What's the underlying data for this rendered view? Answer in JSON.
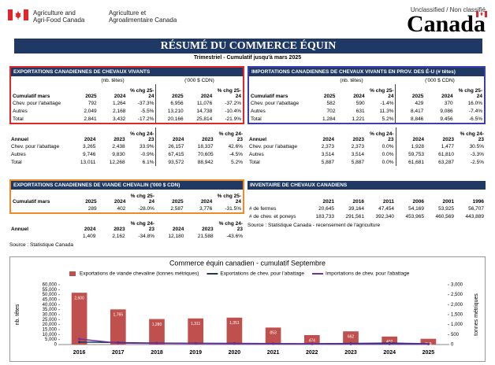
{
  "header": {
    "org_en": [
      "Agriculture and",
      "Agri-Food Canada"
    ],
    "org_fr": [
      "Agriculture et",
      "Agroalimentaire Canada"
    ],
    "classification": "Unclassified / Non classifié",
    "wordmark": "Canada"
  },
  "title": "RÉSUMÉ DU COMMERCE ÉQUIN",
  "subtitle": "Trimestriel - Cumulatif jusqu'à mars 2025",
  "panels": [
    {
      "title": "EXPORTATIONS CANADIENNES DE CHEVAUX VIVANTS",
      "outline": "#e0262b",
      "units": [
        "(nb. têtes)",
        "('000 $ CDN)"
      ],
      "sections": [
        {
          "label": "Cumulatif mars",
          "columns": [
            "2025",
            "2024",
            "% chg 25-24",
            "2025",
            "2024",
            "% chg 25-24"
          ],
          "rows": [
            {
              "label": "Chev. pour l'abattage",
              "cells": [
                "792",
                "1,264",
                "-37.3%",
                "6,956",
                "11,076",
                "-37.2%"
              ]
            },
            {
              "label": "Autres",
              "cells": [
                "2,049",
                "2,168",
                "-5.5%",
                "13,210",
                "14,738",
                "-10.4%"
              ]
            },
            {
              "label": "Total",
              "cells": [
                "2,841",
                "3,432",
                "-17.2%",
                "20,166",
                "25,814",
                "-21.9%"
              ]
            }
          ]
        },
        {
          "label": "Annuel",
          "columns": [
            "2024",
            "2023",
            "% chg 24-23",
            "2024",
            "2023",
            "% chg 24-23"
          ],
          "rows": [
            {
              "label": "Chev. pour l'abattage",
              "cells": [
                "3,265",
                "2,438",
                "33.9%",
                "26,157",
                "18,337",
                "42.6%"
              ]
            },
            {
              "label": "Autres",
              "cells": [
                "9,746",
                "9,830",
                "-0.9%",
                "67,415",
                "70,605",
                "-4.5%"
              ]
            },
            {
              "label": "Total",
              "cells": [
                "13,011",
                "12,268",
                "6.1%",
                "93,572",
                "88,942",
                "5.2%"
              ]
            }
          ]
        }
      ]
    },
    {
      "title": "IMPORTATIONS CANADIENNES DE CHEVAUX VIVANTS EN PROV. DES É-U (# têtes)",
      "outline": "#3b3fb0",
      "units": [
        "(nb. têtes)",
        "('000 $ CDN)"
      ],
      "sections": [
        {
          "label": "Cumulatif mars",
          "columns": [
            "2025",
            "2024",
            "% chg 25-24",
            "2025",
            "2024",
            "% chg 25-24"
          ],
          "rows": [
            {
              "label": "Chev. pour l'abattage",
              "cells": [
                "582",
                "590",
                "-1.4%",
                "429",
                "370",
                "16.0%"
              ]
            },
            {
              "label": "Autres",
              "cells": [
                "702",
                "631",
                "11.3%",
                "8,417",
                "9,086",
                "-7.4%"
              ]
            },
            {
              "label": "Total",
              "cells": [
                "1,284",
                "1,221",
                "5.2%",
                "8,846",
                "9,456",
                "-6.5%"
              ]
            }
          ]
        },
        {
          "label": "Annuel",
          "columns": [
            "2024",
            "2023",
            "% chg 24-23",
            "2024",
            "2023",
            "% chg 24-23"
          ],
          "rows": [
            {
              "label": "Chev. pour l'abattage",
              "cells": [
                "2,373",
                "2,373",
                "0.0%",
                "1,928",
                "1,477",
                "30.5%"
              ]
            },
            {
              "label": "Autres",
              "cells": [
                "3,514",
                "3,514",
                "0.0%",
                "59,753",
                "61,810",
                "-3.3%"
              ]
            },
            {
              "label": "Total",
              "cells": [
                "5,887",
                "5,887",
                "0.0%",
                "61,681",
                "63,287",
                "-2.5%"
              ]
            }
          ]
        }
      ]
    },
    {
      "title": "EXPORTATIONS CANADIENNES DE VIANDE CHEVALIN ('000 $ CDN)",
      "outline": "#ef8a2a",
      "sections": [
        {
          "label": "Cumulatif mars",
          "columns": [
            "2025",
            "2024",
            "% chg 25-24",
            "2025",
            "2024",
            "% chg 25-24"
          ],
          "rows": [
            {
              "cells": [
                "289",
                "402",
                "-28.0%",
                "2,587",
                "3,776",
                "-31.5%"
              ]
            }
          ]
        },
        {
          "label": "Annuel",
          "columns": [
            "2024",
            "2023",
            "% chg 24-23",
            "2024",
            "2023",
            "% chg 24-23"
          ],
          "rows": [
            {
              "cells": [
                "1,409",
                "2,162",
                "-34.8%",
                "12,180",
                "21,588",
                "-43.6%"
              ]
            }
          ]
        }
      ],
      "source": "Source : Statistique Canada"
    },
    {
      "title": "INVENTAIRE DE CHEVAUX CANADIENS",
      "sections": [
        {
          "columns": [
            "2021",
            "2016",
            "2011",
            "2006",
            "2001",
            "1996"
          ],
          "rows": [
            {
              "label": "# de fermes",
              "cells": [
                "20,645",
                "39,164",
                "47,454",
                "54,169",
                "53,925",
                "56,707"
              ]
            },
            {
              "label": "# de chev. et poneys",
              "cells": [
                "183,733",
                "291,561",
                "392,340",
                "453,965",
                "460,569",
                "443,889"
              ]
            }
          ]
        }
      ],
      "source": "Source : Statistique Canada - recensement de l'agriculture"
    }
  ],
  "chart_data": {
    "type": "bar_line",
    "title": "Commerce équin canadien - cumulatif Septembre",
    "categories": [
      "2016",
      "2017",
      "2018",
      "2019",
      "2020",
      "2021",
      "2022",
      "2023",
      "2024",
      "2025"
    ],
    "series": [
      {
        "name": "Exportations de viande chevaline (tonnes métriques)",
        "type": "bar",
        "axis": "y2",
        "color": "#c0504d",
        "values": [
          2600,
          1765,
          1280,
          1311,
          1351,
          853,
          474,
          662,
          402,
          289
        ],
        "value_labels": [
          "2,600",
          "1,765",
          "1,280",
          "1,311",
          "1,351",
          "853",
          "474",
          "662",
          "402",
          "289"
        ]
      },
      {
        "name": "Exportations de chev. pour l'abattage",
        "type": "line",
        "color": "#1f3864",
        "values": [
          2500,
          2000,
          1500,
          1300,
          1200,
          1000,
          900,
          1100,
          1500,
          800
        ]
      },
      {
        "name": "Importations de chev. pour l'abattage",
        "type": "line",
        "color": "#7030a0",
        "values": [
          5500,
          1500,
          1200,
          1000,
          800,
          700,
          600,
          500,
          450,
          400
        ]
      }
    ],
    "ylabel": "nb. têtes",
    "y2label": "tonnes métriques",
    "ylim": [
      0,
      60000
    ],
    "yticks": [
      0,
      {
        "value": 5000,
        "label": "5,000"
      },
      {
        "value": 10000,
        "label": "10,000"
      },
      {
        "value": 15000,
        "label": "15,000"
      },
      {
        "value": 20000,
        "label": "20,000"
      },
      {
        "value": 25000,
        "label": "25,000"
      },
      {
        "value": 30000,
        "label": "30,000"
      },
      {
        "value": 35000,
        "label": "35,000"
      },
      {
        "value": 40000,
        "label": "40,000"
      },
      {
        "value": 45000,
        "label": "45,000"
      },
      {
        "value": 50000,
        "label": "50,000"
      },
      {
        "value": 55000,
        "label": "55,000"
      },
      {
        "value": 60000,
        "label": "60,000"
      }
    ],
    "y2lim": [
      0,
      3000
    ],
    "y2ticks": [
      0,
      500,
      {
        "value": 1000,
        "label": "1,000"
      },
      {
        "value": 1500,
        "label": "1,500"
      },
      {
        "value": 2000,
        "label": "2,000"
      },
      {
        "value": 2500,
        "label": "2,500"
      },
      {
        "value": 3000,
        "label": "3,000"
      }
    ],
    "grid": false
  }
}
